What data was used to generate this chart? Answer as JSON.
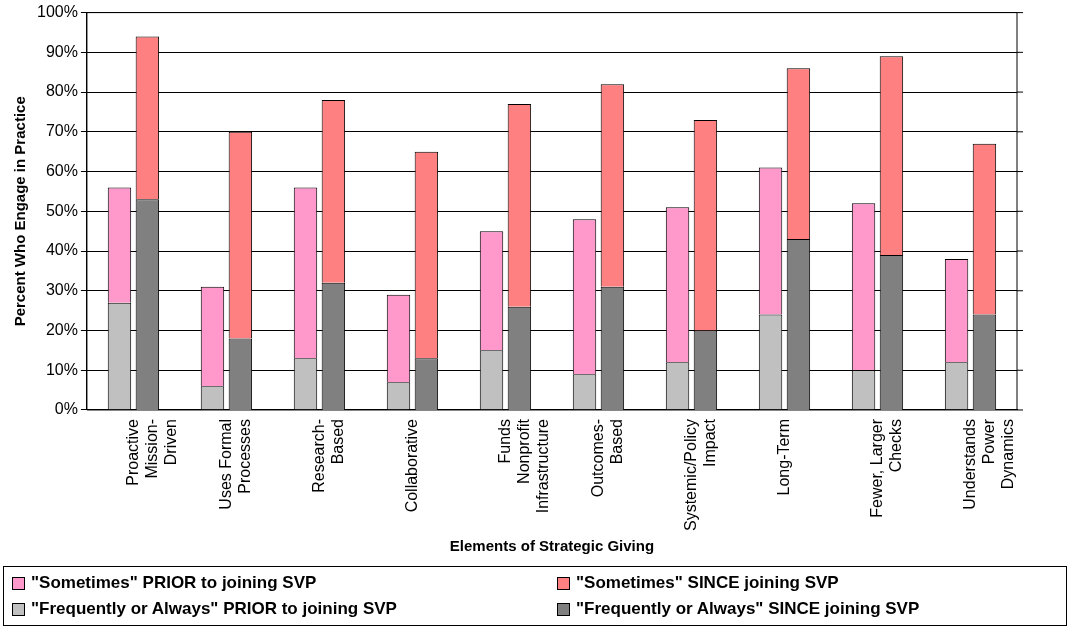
{
  "chart_data": [
    {
      "type": "bar",
      "stacked": true,
      "xlabel": "Elements of Strategic Giving",
      "ylabel": "Percent Who Engage in Practice",
      "categories": [
        "Proactive Mission-Driven",
        "Uses Formal Processes",
        "Research-Based",
        "Collaborative",
        "Funds Nonprofit Infrastructure",
        "Outcomes-Based",
        "Systemic/Policy Impact",
        "Long-Term",
        "Fewer, Larger Checks",
        "Understands Power Dynamics"
      ],
      "series": [
        {
          "name": "\"Frequently or Always\" PRIOR to joining SVP",
          "color": "#c0c0c0",
          "values": [
            27,
            6,
            13,
            7,
            15,
            9,
            12,
            24,
            10,
            12
          ]
        },
        {
          "name": "\"Sometimes\" PRIOR to joining SVP",
          "color": "#ff99cc",
          "values": [
            29,
            25,
            43,
            22,
            30,
            39,
            39,
            37,
            42,
            26
          ]
        }
      ],
      "ylim": [
        0,
        100
      ],
      "yticks": [
        {
          "value": 0,
          "label": "0%"
        },
        {
          "value": 10,
          "label": "10%"
        },
        {
          "value": 20,
          "label": "20%"
        },
        {
          "value": 30,
          "label": "30%"
        },
        {
          "value": 40,
          "label": "40%"
        },
        {
          "value": 50,
          "label": "50%"
        },
        {
          "value": 60,
          "label": "60%"
        },
        {
          "value": 70,
          "label": "70%"
        },
        {
          "value": 80,
          "label": "80%"
        },
        {
          "value": 90,
          "label": "90%"
        },
        {
          "value": 100,
          "label": "100%"
        }
      ],
      "grid": "y",
      "legend": "bottom"
    },
    {
      "type": "bar",
      "stacked": true,
      "categories": [
        null,
        null,
        null,
        null,
        null,
        null,
        null,
        null,
        null,
        null
      ],
      "series": [
        {
          "name": "\"Frequently or Always\" SINCE joining SVP",
          "color": "#808080",
          "values": [
            53,
            18,
            32,
            13,
            26,
            31,
            20,
            43,
            39,
            24
          ]
        },
        {
          "name": "\"Sometimes\" SINCE joining SVP",
          "color": "#ff8080",
          "values": [
            41,
            52,
            46,
            52,
            51,
            51,
            53,
            43,
            50,
            43
          ]
        }
      ],
      "ylim": [
        0,
        100
      ],
      "yticks": [
        {
          "value": 0,
          "label": null
        },
        {
          "value": 10,
          "label": null
        },
        {
          "value": 20,
          "label": null
        },
        {
          "value": 30,
          "label": null
        },
        {
          "value": 40,
          "label": null
        },
        {
          "value": 50,
          "label": null
        },
        {
          "value": 60,
          "label": null
        },
        {
          "value": 70,
          "label": null
        },
        {
          "value": 80,
          "label": null
        },
        {
          "value": 90,
          "label": null
        },
        {
          "value": 100,
          "label": null
        }
      ],
      "tick_labels": false,
      "legend": "bottom"
    }
  ]
}
